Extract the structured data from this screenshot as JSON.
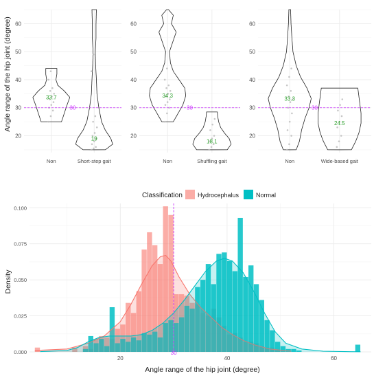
{
  "chart_data": [
    {
      "type": "violin",
      "ylabel": "Angle range of the hip joint (degree)",
      "ylim": [
        14,
        65
      ],
      "yticks": [
        20,
        30,
        40,
        50,
        60
      ],
      "reference_line": {
        "value": 30,
        "label": "30",
        "color": "#cc33ff",
        "style": "dashed"
      },
      "panels": [
        {
          "categories": [
            "Non",
            "Short-step gait"
          ],
          "medians": [
            {
              "category": "Non",
              "value": 33.7,
              "label": "33.7"
            },
            {
              "category": "Short-step gait",
              "value": 19,
              "label": "19"
            }
          ],
          "violins": [
            {
              "category": "Non",
              "profile": [
                [
                  25,
                  0.55
                ],
                [
                  28,
                  0.7
                ],
                [
                  31,
                  0.85
                ],
                [
                  33.7,
                  1.0
                ],
                [
                  36,
                  0.7
                ],
                [
                  38,
                  0.35
                ],
                [
                  40,
                  0.25
                ],
                [
                  42,
                  0.3
                ],
                [
                  44,
                  0.3
                ]
              ]
            },
            {
              "category": "Short-step gait",
              "profile": [
                [
                  15,
                  0.6
                ],
                [
                  17,
                  1.0
                ],
                [
                  19,
                  0.9
                ],
                [
                  22,
                  0.6
                ],
                [
                  25,
                  0.4
                ],
                [
                  30,
                  0.25
                ],
                [
                  35,
                  0.15
                ],
                [
                  40,
                  0.12
                ],
                [
                  45,
                  0.08
                ],
                [
                  50,
                  0.06
                ],
                [
                  55,
                  0.1
                ],
                [
                  60,
                  0.1
                ],
                [
                  65,
                  0.12
                ]
              ]
            }
          ],
          "points": [
            {
              "category": "Non",
              "values": [
                25,
                27,
                29,
                30,
                31,
                32,
                33,
                34,
                35,
                36,
                37,
                40,
                43
              ]
            },
            {
              "category": "Short-step gait",
              "values": [
                15,
                15.5,
                16,
                17,
                18,
                19,
                20,
                21,
                23,
                25,
                27,
                43,
                49
              ]
            }
          ]
        },
        {
          "categories": [
            "Non",
            "Shuffling gait"
          ],
          "medians": [
            {
              "category": "Non",
              "value": 34.3,
              "label": "34.3"
            },
            {
              "category": "Shuffling gait",
              "value": 18.1,
              "label": "18.1"
            }
          ],
          "violins": [
            {
              "category": "Non",
              "profile": [
                [
                  25,
                  0.3
                ],
                [
                  28,
                  0.55
                ],
                [
                  31,
                  0.8
                ],
                [
                  34.3,
                  0.95
                ],
                [
                  37,
                  0.9
                ],
                [
                  40,
                  0.6
                ],
                [
                  43,
                  0.3
                ],
                [
                  46,
                  0.15
                ],
                [
                  50,
                  0.1
                ],
                [
                  54,
                  0.3
                ],
                [
                  57,
                  0.45
                ],
                [
                  60,
                  0.2
                ],
                [
                  63,
                  0.3
                ],
                [
                  65,
                  0.05
                ]
              ]
            },
            {
              "category": "Shuffling gait",
              "profile": [
                [
                  15,
                  0.8
                ],
                [
                  17,
                  1.0
                ],
                [
                  19,
                  0.9
                ],
                [
                  21,
                  0.65
                ],
                [
                  23,
                  0.45
                ],
                [
                  25,
                  0.35
                ],
                [
                  27,
                  0.3
                ],
                [
                  28.5,
                  0.28
                ]
              ]
            }
          ],
          "points": [
            {
              "category": "Non",
              "values": [
                25,
                28,
                30,
                31,
                32,
                33,
                34,
                35,
                36,
                37,
                38,
                40,
                44
              ]
            },
            {
              "category": "Shuffling gait",
              "values": [
                15,
                16,
                17,
                18,
                19,
                20,
                22,
                24,
                26
              ]
            }
          ]
        },
        {
          "categories": [
            "Non",
            "Wide-based gait"
          ],
          "medians": [
            {
              "category": "Non",
              "value": 33.3,
              "label": "33.3"
            },
            {
              "category": "Wide-based gait",
              "value": 24.5,
              "label": "24.5"
            }
          ],
          "violins": [
            {
              "category": "Non",
              "profile": [
                [
                  15,
                  0.3
                ],
                [
                  18,
                  0.45
                ],
                [
                  22,
                  0.55
                ],
                [
                  26,
                  0.7
                ],
                [
                  30,
                  0.9
                ],
                [
                  33.3,
                  1.0
                ],
                [
                  37,
                  0.8
                ],
                [
                  41,
                  0.5
                ],
                [
                  45,
                  0.3
                ],
                [
                  50,
                  0.15
                ],
                [
                  55,
                  0.1
                ],
                [
                  60,
                  0.06
                ],
                [
                  65,
                  0.04
                ]
              ]
            },
            {
              "category": "Wide-based gait",
              "profile": [
                [
                  15,
                  0.55
                ],
                [
                  18,
                  0.75
                ],
                [
                  21,
                  0.9
                ],
                [
                  24.5,
                  1.0
                ],
                [
                  28,
                  1.0
                ],
                [
                  31,
                  0.95
                ],
                [
                  34,
                  0.9
                ],
                [
                  37,
                  0.85
                ]
              ]
            }
          ],
          "points": [
            {
              "category": "Non",
              "values": [
                15,
                17,
                20,
                22,
                25,
                28,
                30,
                32,
                33,
                34,
                36,
                38,
                41,
                44
              ]
            },
            {
              "category": "Wide-based gait",
              "values": [
                16,
                18,
                20,
                23,
                25,
                27,
                29,
                31,
                33
              ]
            }
          ]
        }
      ]
    },
    {
      "type": "histogram",
      "legend_title": "Classification",
      "legend_position": "top",
      "xlabel": "Angle range of the hip joint (degree)",
      "ylabel": "Density",
      "xlim": [
        3,
        67
      ],
      "ylim": [
        0,
        0.103
      ],
      "xticks": [
        20,
        40,
        60
      ],
      "yticks": [
        0.0,
        0.025,
        0.05,
        0.075,
        0.1
      ],
      "ytick_labels": [
        "0.000",
        "0.025",
        "0.050",
        "0.075",
        "0.100"
      ],
      "bin_width": 1,
      "reference_line": {
        "value": 30,
        "label": "30",
        "color": "#cc33ff",
        "style": "dashed"
      },
      "series": [
        {
          "name": "Hydrocephalus",
          "color": "#F8766D",
          "bins": [
            [
              4.5,
              0.003
            ],
            [
              11.5,
              0.003
            ],
            [
              13.5,
              0.004
            ],
            [
              14.5,
              0.002
            ],
            [
              15.5,
              0.009
            ],
            [
              16.5,
              0.011
            ],
            [
              17.5,
              0.01
            ],
            [
              18.5,
              0.009
            ],
            [
              19.5,
              0.016
            ],
            [
              20.5,
              0.019
            ],
            [
              21.5,
              0.034
            ],
            [
              22.5,
              0.027
            ],
            [
              23.5,
              0.042
            ],
            [
              24.5,
              0.071
            ],
            [
              25.5,
              0.083
            ],
            [
              26.5,
              0.074
            ],
            [
              27.5,
              0.061
            ],
            [
              28.5,
              0.101
            ],
            [
              29.5,
              0.095
            ],
            [
              30.5,
              0.04
            ],
            [
              31.5,
              0.04
            ],
            [
              32.5,
              0.039
            ],
            [
              33.5,
              0.034
            ],
            [
              34.5,
              0.033
            ],
            [
              35.5,
              0.027
            ],
            [
              36.5,
              0.025
            ],
            [
              37.5,
              0.03
            ],
            [
              38.5,
              0.024
            ],
            [
              39.5,
              0.018
            ],
            [
              40.5,
              0.012
            ],
            [
              41.5,
              0.013
            ],
            [
              42.5,
              0.01
            ],
            [
              43.5,
              0.007
            ],
            [
              44.5,
              0.007
            ],
            [
              45.5,
              0.006
            ],
            [
              46.5,
              0.004
            ],
            [
              47.5,
              0.003
            ],
            [
              48.5,
              0.003
            ],
            [
              49.5,
              0.001
            ]
          ],
          "density": [
            [
              4,
              0.001
            ],
            [
              10,
              0.002
            ],
            [
              14,
              0.006
            ],
            [
              17,
              0.011
            ],
            [
              20,
              0.021
            ],
            [
              22,
              0.033
            ],
            [
              24,
              0.047
            ],
            [
              26,
              0.06
            ],
            [
              27.5,
              0.066
            ],
            [
              28.5,
              0.067
            ],
            [
              29.5,
              0.063
            ],
            [
              31,
              0.052
            ],
            [
              33,
              0.04
            ],
            [
              35,
              0.031
            ],
            [
              37,
              0.024
            ],
            [
              39,
              0.017
            ],
            [
              41,
              0.012
            ],
            [
              43,
              0.008
            ],
            [
              45,
              0.005
            ],
            [
              48,
              0.002
            ],
            [
              52,
              0.0005
            ]
          ]
        },
        {
          "name": "Normal",
          "color": "#00BFC4",
          "bins": [
            [
              13.5,
              0.002
            ],
            [
              14.5,
              0.011
            ],
            [
              15.5,
              0.006
            ],
            [
              16.5,
              0.009
            ],
            [
              17.5,
              0.004
            ],
            [
              18.5,
              0.031
            ],
            [
              19.5,
              0.006
            ],
            [
              20.5,
              0.009
            ],
            [
              21.5,
              0.007
            ],
            [
              22.5,
              0.01
            ],
            [
              23.5,
              0.008
            ],
            [
              24.5,
              0.013
            ],
            [
              25.5,
              0.012
            ],
            [
              26.5,
              0.014
            ],
            [
              27.5,
              0.01
            ],
            [
              28.5,
              0.02
            ],
            [
              29.5,
              0.022
            ],
            [
              30.5,
              0.02
            ],
            [
              31.5,
              0.024
            ],
            [
              32.5,
              0.032
            ],
            [
              33.5,
              0.03
            ],
            [
              34.5,
              0.045
            ],
            [
              35.5,
              0.05
            ],
            [
              36.5,
              0.061
            ],
            [
              37.5,
              0.047
            ],
            [
              38.5,
              0.068
            ],
            [
              39.5,
              0.069
            ],
            [
              40.5,
              0.063
            ],
            [
              41.5,
              0.056
            ],
            [
              42.5,
              0.093
            ],
            [
              43.5,
              0.052
            ],
            [
              44.5,
              0.06
            ],
            [
              45.5,
              0.047
            ],
            [
              46.5,
              0.036
            ],
            [
              47.5,
              0.022
            ],
            [
              48.5,
              0.015
            ],
            [
              49.5,
              0.007
            ],
            [
              50.5,
              0.004
            ],
            [
              51.5,
              0.002
            ],
            [
              52.5,
              0.002
            ],
            [
              53.5,
              0.001
            ],
            [
              64.5,
              0.005
            ]
          ],
          "density": [
            [
              5,
              0.0002
            ],
            [
              10,
              0.001
            ],
            [
              12,
              0.003
            ],
            [
              14,
              0.007
            ],
            [
              16,
              0.01
            ],
            [
              18,
              0.011
            ],
            [
              20,
              0.011
            ],
            [
              22,
              0.011
            ],
            [
              24,
              0.012
            ],
            [
              26,
              0.015
            ],
            [
              28,
              0.02
            ],
            [
              30,
              0.027
            ],
            [
              32,
              0.036
            ],
            [
              34,
              0.046
            ],
            [
              36,
              0.056
            ],
            [
              38,
              0.063
            ],
            [
              39.5,
              0.065
            ],
            [
              41,
              0.063
            ],
            [
              43,
              0.055
            ],
            [
              45,
              0.042
            ],
            [
              47,
              0.027
            ],
            [
              49,
              0.014
            ],
            [
              51,
              0.006
            ],
            [
              54,
              0.002
            ],
            [
              58,
              0.0005
            ],
            [
              62,
              0.0002
            ],
            [
              65,
              0.0001
            ]
          ]
        }
      ]
    }
  ]
}
